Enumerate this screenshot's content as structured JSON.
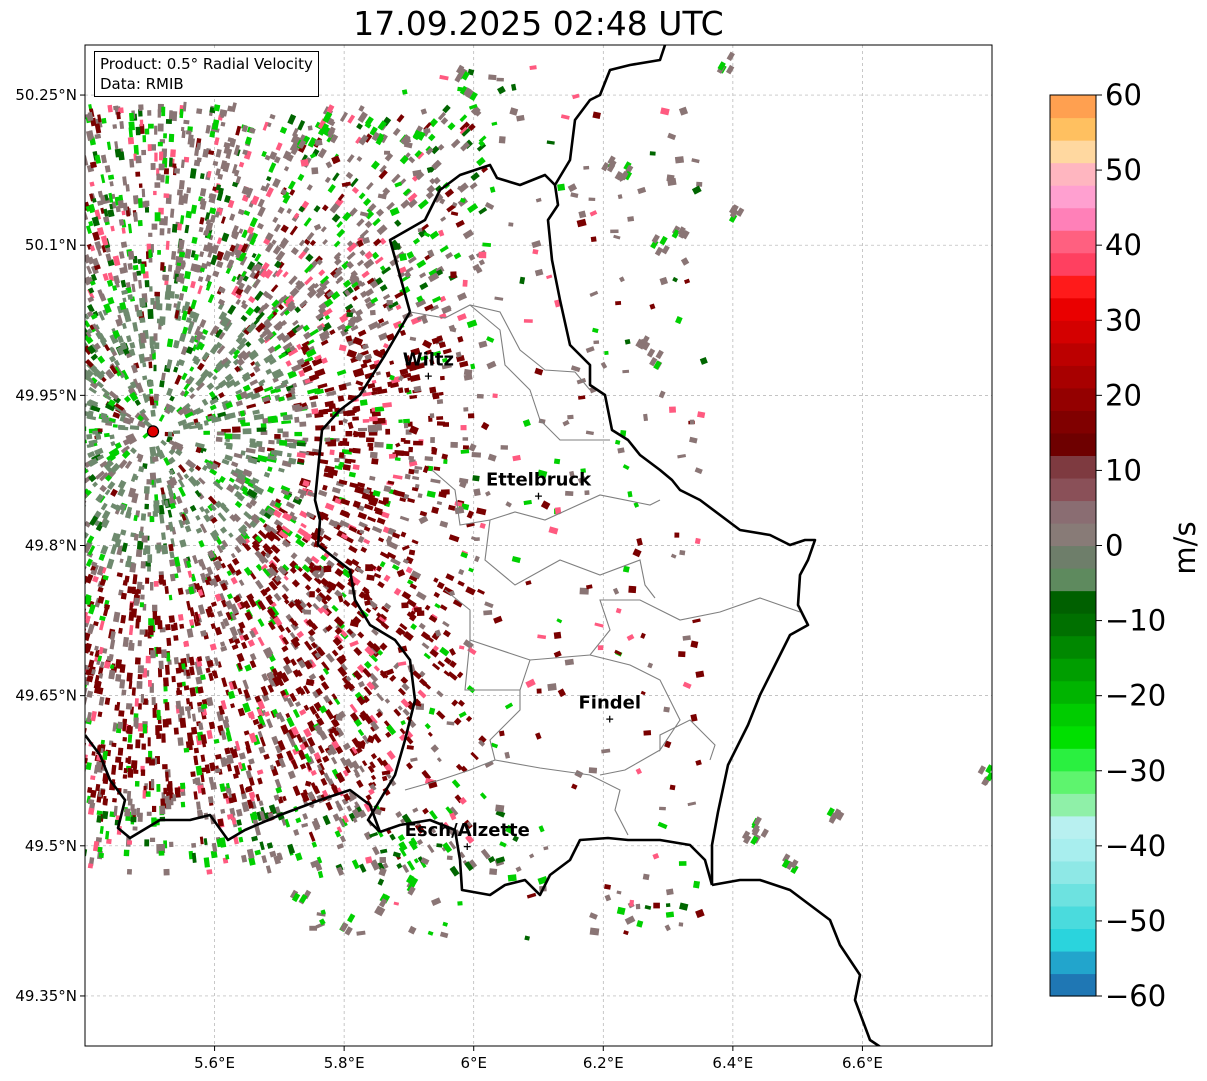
{
  "title": "17.09.2025 02:48 UTC",
  "info": {
    "product_line": "Product: 0.5° Radial Velocity",
    "data_line": "Data: RMIB"
  },
  "map": {
    "lon_range": [
      5.4,
      6.8
    ],
    "lat_range": [
      49.3,
      50.3
    ],
    "lon_ticks": [
      {
        "value": 5.6,
        "label": "5.6°E"
      },
      {
        "value": 5.8,
        "label": "5.8°E"
      },
      {
        "value": 6.0,
        "label": "6°E"
      },
      {
        "value": 6.2,
        "label": "6.2°E"
      },
      {
        "value": 6.4,
        "label": "6.4°E"
      },
      {
        "value": 6.6,
        "label": "6.6°E"
      }
    ],
    "lat_ticks": [
      {
        "value": 50.25,
        "label": "50.25°N"
      },
      {
        "value": 50.1,
        "label": "50.1°N"
      },
      {
        "value": 49.95,
        "label": "49.95°N"
      },
      {
        "value": 49.8,
        "label": "49.8°N"
      },
      {
        "value": 49.65,
        "label": "49.65°N"
      },
      {
        "value": 49.5,
        "label": "49.5°N"
      },
      {
        "value": 49.35,
        "label": "49.35°N"
      }
    ],
    "grid": true,
    "radar_site": {
      "lon": 5.505,
      "lat": 49.914
    },
    "cities": [
      {
        "name": "Wiltz",
        "lon": 5.93,
        "lat": 49.97
      },
      {
        "name": "Ettelbruck",
        "lon": 6.1,
        "lat": 49.85
      },
      {
        "name": "Findel",
        "lon": 6.21,
        "lat": 49.627
      },
      {
        "name": "Esch/Alzette",
        "lon": 5.99,
        "lat": 49.5
      }
    ]
  },
  "colorbar": {
    "label": "m/s",
    "vmin": -60,
    "vmax": 60,
    "ticks": [
      "60",
      "50",
      "40",
      "30",
      "20",
      "10",
      "0",
      "−10",
      "−20",
      "−30",
      "−40",
      "−50",
      "−60"
    ],
    "colors": [
      "#1f77b4",
      "#22a5cc",
      "#2ad4dd",
      "#4adbdd",
      "#6de2e0",
      "#8ee8e6",
      "#a8eeee",
      "#b8f0f0",
      "#8ff0a8",
      "#5ef46e",
      "#2af040",
      "#00e000",
      "#00cc00",
      "#00b400",
      "#009e00",
      "#008800",
      "#007000",
      "#006000",
      "#5e8a5e",
      "#6e7e6a",
      "#887b77",
      "#8a6d72",
      "#8a5058",
      "#7e3a40",
      "#6e0000",
      "#800000",
      "#940000",
      "#a80000",
      "#bc0000",
      "#d40000",
      "#ea0000",
      "#ff1a1a",
      "#ff4060",
      "#ff6080",
      "#ff80b8",
      "#ffa0d0",
      "#ffb6c0",
      "#ffd8a0",
      "#ffc060",
      "#ffa050"
    ]
  },
  "palette": {
    "outflow_dark_red": "#7a0000",
    "near_zero_gray": "#8a7575",
    "inflow_green": "#00d000",
    "dark_green": "#006600",
    "pink": "#ff5a80",
    "border": "#000000",
    "canton_lines": "#7f7f7f",
    "radar_marker": "#e00000"
  }
}
